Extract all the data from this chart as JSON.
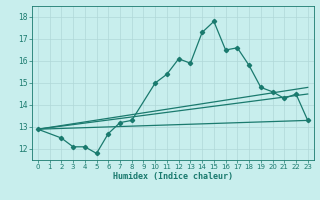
{
  "xlabel": "Humidex (Indice chaleur)",
  "background_color": "#c8eeed",
  "grid_color": "#b0d8d8",
  "line_color": "#1a7a6e",
  "xlim": [
    -0.5,
    23.5
  ],
  "ylim": [
    11.5,
    18.5
  ],
  "xticks": [
    0,
    1,
    2,
    3,
    4,
    5,
    6,
    7,
    8,
    9,
    10,
    11,
    12,
    13,
    14,
    15,
    16,
    17,
    18,
    19,
    20,
    21,
    22,
    23
  ],
  "yticks": [
    12,
    13,
    14,
    15,
    16,
    17,
    18
  ],
  "series1_x": [
    0,
    2,
    3,
    4,
    5,
    6,
    7,
    8,
    10,
    11,
    12,
    13,
    14,
    15,
    16,
    17,
    18,
    19,
    20,
    21,
    22,
    23
  ],
  "series1_y": [
    12.9,
    12.5,
    12.1,
    12.1,
    11.8,
    12.7,
    13.2,
    13.3,
    15.0,
    15.4,
    16.1,
    15.9,
    17.3,
    17.8,
    16.5,
    16.6,
    15.8,
    14.8,
    14.6,
    14.3,
    14.5,
    13.3
  ],
  "series2_x": [
    0,
    23
  ],
  "series2_y": [
    12.9,
    14.5
  ],
  "series3_x": [
    0,
    23
  ],
  "series3_y": [
    12.9,
    13.3
  ],
  "series4_x": [
    0,
    23
  ],
  "series4_y": [
    12.9,
    14.8
  ],
  "xlabel_fontsize": 6.0,
  "tick_fontsize": 5.0,
  "linewidth": 0.9,
  "markersize": 2.2
}
